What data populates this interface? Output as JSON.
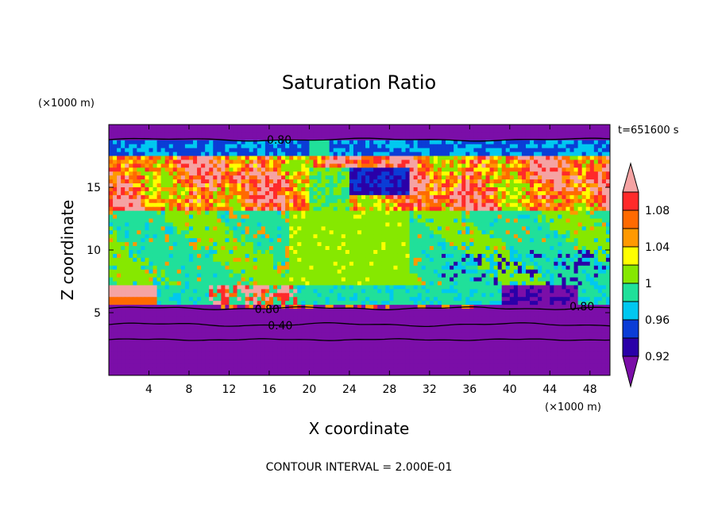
{
  "chart_data": {
    "type": "heatmap",
    "title": "Saturation Ratio",
    "xlabel": "X coordinate",
    "ylabel": "Z coordinate",
    "x_unit": "(×1000 m)",
    "y_unit": "(×1000 m)",
    "time_label": "t=651600 s",
    "footer": "CONTOUR INTERVAL = 2.000E-01",
    "xlim": [
      0,
      50
    ],
    "ylim": [
      0,
      20
    ],
    "x_ticks": [
      4,
      8,
      12,
      16,
      20,
      24,
      28,
      32,
      36,
      40,
      44,
      48
    ],
    "y_ticks": [
      5,
      10,
      15
    ],
    "contour_labels": [
      {
        "text": "0.80",
        "x": 17.0,
        "y": 18.8
      },
      {
        "text": "0.80",
        "x": 15.8,
        "y": 5.3
      },
      {
        "text": "0.40",
        "x": 17.1,
        "y": 4.0
      },
      {
        "text": "0.80",
        "x": 47.2,
        "y": 5.5
      }
    ],
    "colorbar": {
      "labels": [
        "1.08",
        "1.04",
        "1",
        "0.96",
        "0.92"
      ],
      "levels": [
        0.92,
        0.94,
        0.96,
        0.98,
        1.0,
        1.02,
        1.04,
        1.06,
        1.08,
        1.1
      ],
      "colors": [
        "#7b0ea8",
        "#2a00a8",
        "#0b3dd6",
        "#00c8f0",
        "#20e09a",
        "#86e800",
        "#ffff00",
        "#ff9900",
        "#ff6a00",
        "#ff2a2a",
        "#f5a3a3"
      ]
    }
  }
}
